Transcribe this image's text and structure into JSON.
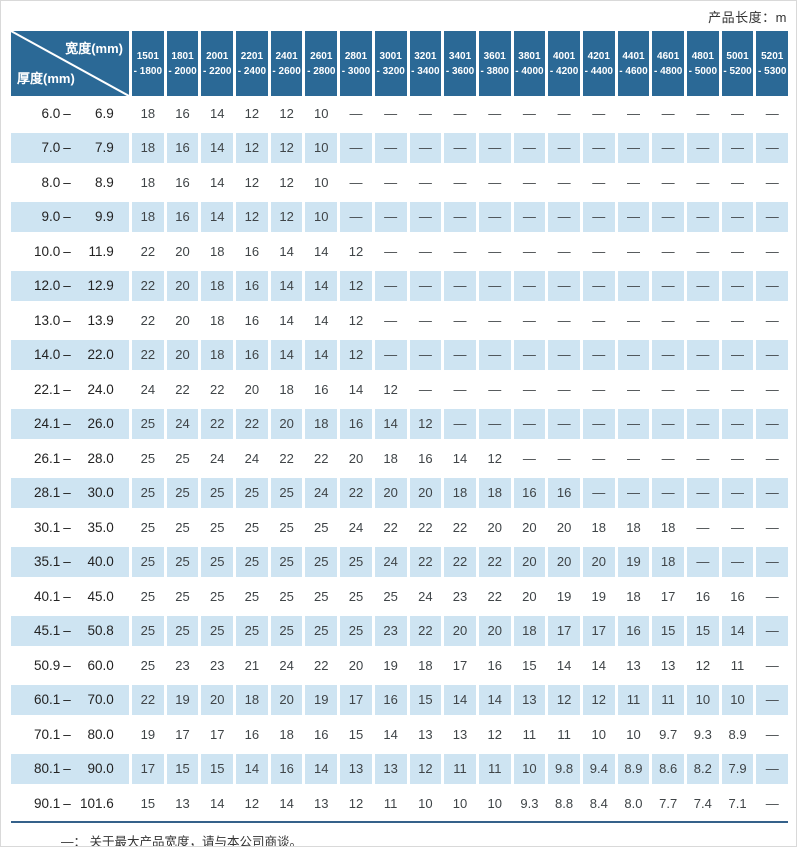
{
  "topbar": {
    "product_length_label": "产品长度：m"
  },
  "table": {
    "corner": {
      "top_label": "宽度(mm)",
      "bottom_label": "厚度(mm)"
    },
    "width_columns": [
      {
        "line1": "1501",
        "line2": "- 1800"
      },
      {
        "line1": "1801",
        "line2": "- 2000"
      },
      {
        "line1": "2001",
        "line2": "- 2200"
      },
      {
        "line1": "2201",
        "line2": "- 2400"
      },
      {
        "line1": "2401",
        "line2": "- 2600"
      },
      {
        "line1": "2601",
        "line2": "- 2800"
      },
      {
        "line1": "2801",
        "line2": "- 3000"
      },
      {
        "line1": "3001",
        "line2": "- 3200"
      },
      {
        "line1": "3201",
        "line2": "- 3400"
      },
      {
        "line1": "3401",
        "line2": "- 3600"
      },
      {
        "line1": "3601",
        "line2": "- 3800"
      },
      {
        "line1": "3801",
        "line2": "- 4000"
      },
      {
        "line1": "4001",
        "line2": "- 4200"
      },
      {
        "line1": "4201",
        "line2": "- 4400"
      },
      {
        "line1": "4401",
        "line2": "- 4600"
      },
      {
        "line1": "4601",
        "line2": "- 4800"
      },
      {
        "line1": "4801",
        "line2": "- 5000"
      },
      {
        "line1": "5001",
        "line2": "- 5200"
      },
      {
        "line1": "5201",
        "line2": "- 5300"
      }
    ],
    "range_separator": "–",
    "rows": [
      {
        "from": "6.0",
        "to": "6.9",
        "values": [
          "18",
          "16",
          "14",
          "12",
          "12",
          "10",
          "—",
          "—",
          "—",
          "—",
          "—",
          "—",
          "—",
          "—",
          "—",
          "—",
          "—",
          "—",
          "—"
        ]
      },
      {
        "from": "7.0",
        "to": "7.9",
        "values": [
          "18",
          "16",
          "14",
          "12",
          "12",
          "10",
          "—",
          "—",
          "—",
          "—",
          "—",
          "—",
          "—",
          "—",
          "—",
          "—",
          "—",
          "—",
          "—"
        ]
      },
      {
        "from": "8.0",
        "to": "8.9",
        "values": [
          "18",
          "16",
          "14",
          "12",
          "12",
          "10",
          "—",
          "—",
          "—",
          "—",
          "—",
          "—",
          "—",
          "—",
          "—",
          "—",
          "—",
          "—",
          "—"
        ]
      },
      {
        "from": "9.0",
        "to": "9.9",
        "values": [
          "18",
          "16",
          "14",
          "12",
          "12",
          "10",
          "—",
          "—",
          "—",
          "—",
          "—",
          "—",
          "—",
          "—",
          "—",
          "—",
          "—",
          "—",
          "—"
        ]
      },
      {
        "from": "10.0",
        "to": "11.9",
        "values": [
          "22",
          "20",
          "18",
          "16",
          "14",
          "14",
          "12",
          "—",
          "—",
          "—",
          "—",
          "—",
          "—",
          "—",
          "—",
          "—",
          "—",
          "—",
          "—"
        ]
      },
      {
        "from": "12.0",
        "to": "12.9",
        "values": [
          "22",
          "20",
          "18",
          "16",
          "14",
          "14",
          "12",
          "—",
          "—",
          "—",
          "—",
          "—",
          "—",
          "—",
          "—",
          "—",
          "—",
          "—",
          "—"
        ]
      },
      {
        "from": "13.0",
        "to": "13.9",
        "values": [
          "22",
          "20",
          "18",
          "16",
          "14",
          "14",
          "12",
          "—",
          "—",
          "—",
          "—",
          "—",
          "—",
          "—",
          "—",
          "—",
          "—",
          "—",
          "—"
        ]
      },
      {
        "from": "14.0",
        "to": "22.0",
        "values": [
          "22",
          "20",
          "18",
          "16",
          "14",
          "14",
          "12",
          "—",
          "—",
          "—",
          "—",
          "—",
          "—",
          "—",
          "—",
          "—",
          "—",
          "—",
          "—"
        ]
      },
      {
        "from": "22.1",
        "to": "24.0",
        "values": [
          "24",
          "22",
          "22",
          "20",
          "18",
          "16",
          "14",
          "12",
          "—",
          "—",
          "—",
          "—",
          "—",
          "—",
          "—",
          "—",
          "—",
          "—",
          "—"
        ]
      },
      {
        "from": "24.1",
        "to": "26.0",
        "values": [
          "25",
          "24",
          "22",
          "22",
          "20",
          "18",
          "16",
          "14",
          "12",
          "—",
          "—",
          "—",
          "—",
          "—",
          "—",
          "—",
          "—",
          "—",
          "—"
        ]
      },
      {
        "from": "26.1",
        "to": "28.0",
        "values": [
          "25",
          "25",
          "24",
          "24",
          "22",
          "22",
          "20",
          "18",
          "16",
          "14",
          "12",
          "—",
          "—",
          "—",
          "—",
          "—",
          "—",
          "—",
          "—"
        ]
      },
      {
        "from": "28.1",
        "to": "30.0",
        "values": [
          "25",
          "25",
          "25",
          "25",
          "25",
          "24",
          "22",
          "20",
          "20",
          "18",
          "18",
          "16",
          "16",
          "—",
          "—",
          "—",
          "—",
          "—",
          "—"
        ]
      },
      {
        "from": "30.1",
        "to": "35.0",
        "values": [
          "25",
          "25",
          "25",
          "25",
          "25",
          "25",
          "24",
          "22",
          "22",
          "22",
          "20",
          "20",
          "20",
          "18",
          "18",
          "18",
          "—",
          "—",
          "—"
        ]
      },
      {
        "from": "35.1",
        "to": "40.0",
        "values": [
          "25",
          "25",
          "25",
          "25",
          "25",
          "25",
          "25",
          "24",
          "22",
          "22",
          "22",
          "20",
          "20",
          "20",
          "19",
          "18",
          "—",
          "—",
          "—"
        ]
      },
      {
        "from": "40.1",
        "to": "45.0",
        "values": [
          "25",
          "25",
          "25",
          "25",
          "25",
          "25",
          "25",
          "25",
          "24",
          "23",
          "22",
          "20",
          "19",
          "19",
          "18",
          "17",
          "16",
          "16",
          "—"
        ]
      },
      {
        "from": "45.1",
        "to": "50.8",
        "values": [
          "25",
          "25",
          "25",
          "25",
          "25",
          "25",
          "25",
          "23",
          "22",
          "20",
          "20",
          "18",
          "17",
          "17",
          "16",
          "15",
          "15",
          "14",
          "—"
        ]
      },
      {
        "from": "50.9",
        "to": "60.0",
        "values": [
          "25",
          "23",
          "23",
          "21",
          "24",
          "22",
          "20",
          "19",
          "18",
          "17",
          "16",
          "15",
          "14",
          "14",
          "13",
          "13",
          "12",
          "11",
          "—"
        ]
      },
      {
        "from": "60.1",
        "to": "70.0",
        "values": [
          "22",
          "19",
          "20",
          "18",
          "20",
          "19",
          "17",
          "16",
          "15",
          "14",
          "14",
          "13",
          "12",
          "12",
          "11",
          "11",
          "10",
          "10",
          "—"
        ]
      },
      {
        "from": "70.1",
        "to": "80.0",
        "values": [
          "19",
          "17",
          "17",
          "16",
          "18",
          "16",
          "15",
          "14",
          "13",
          "13",
          "12",
          "11",
          "11",
          "10",
          "10",
          "9.7",
          "9.3",
          "8.9",
          "—"
        ]
      },
      {
        "from": "80.1",
        "to": "90.0",
        "values": [
          "17",
          "15",
          "15",
          "14",
          "16",
          "14",
          "13",
          "13",
          "12",
          "11",
          "11",
          "10",
          "9.8",
          "9.4",
          "8.9",
          "8.6",
          "8.2",
          "7.9",
          "—"
        ]
      },
      {
        "from": "90.1",
        "to": "101.6",
        "values": [
          "15",
          "13",
          "14",
          "12",
          "14",
          "13",
          "12",
          "11",
          "10",
          "10",
          "10",
          "9.3",
          "8.8",
          "8.4",
          "8.0",
          "7.7",
          "7.4",
          "7.1",
          "—"
        ]
      }
    ]
  },
  "footnote": "—： 关于最大产品宽度，请与本公司商谈。",
  "colors": {
    "header_blue": "#2b6996",
    "row_alt": "#cee4f2",
    "rule": "#35618a"
  }
}
